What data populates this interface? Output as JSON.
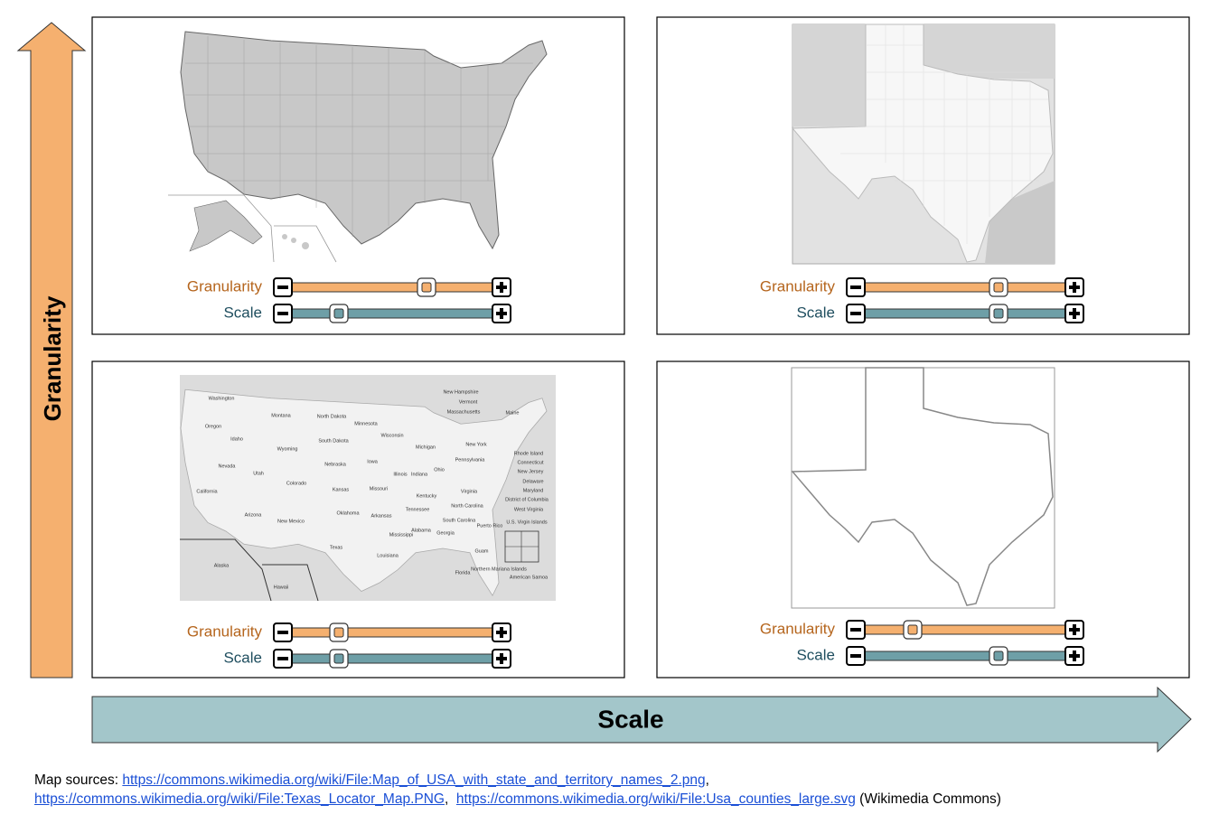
{
  "axes": {
    "vertical": "Granularity",
    "horizontal": "Scale"
  },
  "panels": [
    {
      "sliders": [
        {
          "label": "Granularity"
        },
        {
          "label": "Scale"
        }
      ]
    },
    {
      "sliders": [
        {
          "label": "Granularity"
        },
        {
          "label": "Scale"
        }
      ]
    },
    {
      "sliders": [
        {
          "label": "Granularity"
        },
        {
          "label": "Scale"
        }
      ],
      "map_labels": [
        "Washington",
        "Oregon",
        "Idaho",
        "Montana",
        "Wyoming",
        "Nevada",
        "Utah",
        "California",
        "Arizona",
        "Colorado",
        "New Mexico",
        "North Dakota",
        "South Dakota",
        "Nebraska",
        "Kansas",
        "Oklahoma",
        "Texas",
        "Minnesota",
        "Iowa",
        "Missouri",
        "Arkansas",
        "Louisiana",
        "Wisconsin",
        "Illinois",
        "Michigan",
        "Indiana",
        "Ohio",
        "Kentucky",
        "Tennessee",
        "Mississippi",
        "Alabama",
        "Georgia",
        "Florida",
        "South Carolina",
        "North Carolina",
        "Virginia",
        "West Virginia",
        "Pennsylvania",
        "New York",
        "Maine",
        "New Hampshire",
        "Vermont",
        "Massachusetts",
        "Rhode Island",
        "Connecticut",
        "New Jersey",
        "Delaware",
        "Maryland",
        "District of Columbia",
        "Puerto Rico",
        "U.S. Virgin Islands",
        "Guam",
        "Northern Mariana Islands",
        "American Samoa",
        "Alaska",
        "Hawaii"
      ]
    },
    {
      "sliders": [
        {
          "label": "Granularity"
        },
        {
          "label": "Scale"
        }
      ]
    }
  ],
  "footer": {
    "prefix": "Map sources: ",
    "links": [
      "https://commons.wikimedia.org/wiki/File:Map_of_USA_with_state_and_territory_names_2.png",
      "https://commons.wikimedia.org/wiki/File:Texas_Locator_Map.PNG",
      "https://commons.wikimedia.org/wiki/File:Usa_counties_large.svg"
    ],
    "suffix": "(Wikimedia Commons)"
  }
}
